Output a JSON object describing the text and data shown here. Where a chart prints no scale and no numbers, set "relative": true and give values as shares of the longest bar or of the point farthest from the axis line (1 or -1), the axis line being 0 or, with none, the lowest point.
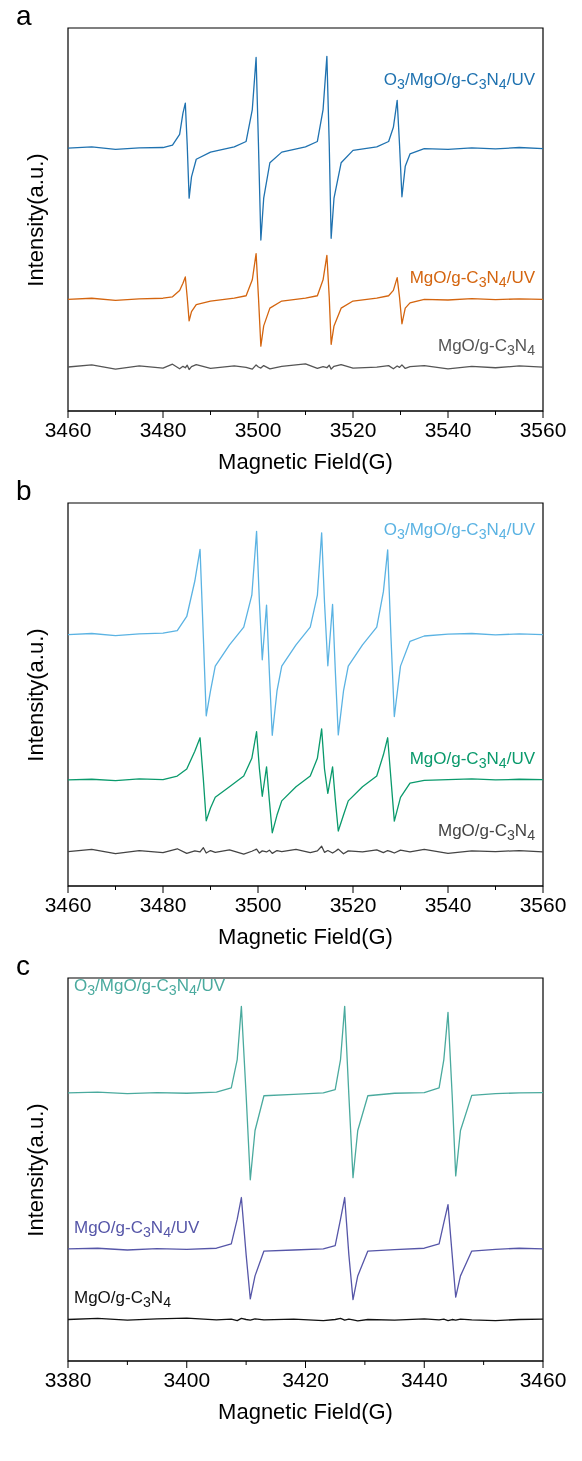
{
  "chart_data": [
    {
      "type": "line",
      "title": "a",
      "xlabel": "Magnetic Field(G)",
      "ylabel": "Intensity(a.u.)",
      "relative": true,
      "grid": false,
      "legend": false,
      "xlim": [
        3460,
        3560
      ],
      "xticks": [
        3460,
        {
          "value": 3470,
          "label": null
        },
        3480,
        {
          "value": 3490,
          "label": null
        },
        3500,
        {
          "value": 3510,
          "label": null
        },
        3520,
        {
          "value": 3530,
          "label": null
        },
        3540,
        {
          "value": 3550,
          "label": null
        },
        3560
      ],
      "series": [
        {
          "name": "O$_{3}$/MgO/g-C$_{3}$N$_{4}$/UV",
          "color": "#1f72b0",
          "x": [
            3460,
            3465,
            3470,
            3475,
            3480,
            3482,
            3483.5,
            3484.2,
            3484.7,
            3485.1,
            3485.5,
            3486,
            3487,
            3490,
            3495,
            3497.5,
            3498.8,
            3499.6,
            3500.1,
            3500.6,
            3501.2,
            3502.5,
            3505,
            3510,
            3512.5,
            3513.7,
            3514.5,
            3515,
            3515.4,
            3516,
            3517.5,
            3520,
            3525,
            3527.5,
            3528.5,
            3529.3,
            3529.8,
            3530.3,
            3531,
            3532,
            3535,
            3540,
            3545,
            3550,
            3555,
            3560
          ],
          "values": [
            0.741,
            0.745,
            0.738,
            0.742,
            0.743,
            0.75,
            0.78,
            0.84,
            0.868,
            0.75,
            0.6,
            0.66,
            0.71,
            0.73,
            0.745,
            0.76,
            0.85,
            0.997,
            0.75,
            0.482,
            0.6,
            0.7,
            0.73,
            0.745,
            0.76,
            0.85,
            1,
            0.75,
            0.487,
            0.6,
            0.7,
            0.735,
            0.745,
            0.76,
            0.8,
            0.876,
            0.75,
            0.604,
            0.69,
            0.725,
            0.74,
            0.738,
            0.742,
            0.739,
            0.743,
            0.74
          ]
        },
        {
          "name": "MgO/g-C$_{3}$N$_{4}$/UV",
          "color": "#d4650f",
          "x": [
            3460,
            3465,
            3470,
            3475,
            3480,
            3482,
            3483.5,
            3484.2,
            3484.7,
            3485.1,
            3485.5,
            3486,
            3487,
            3490,
            3495,
            3497.5,
            3498.8,
            3499.6,
            3500.1,
            3500.6,
            3501.2,
            3502.5,
            3505,
            3510,
            3512.5,
            3513.7,
            3514.5,
            3515,
            3515.4,
            3516,
            3517.5,
            3520,
            3525,
            3527.5,
            3528.5,
            3529.3,
            3529.8,
            3530.3,
            3531,
            3532,
            3535,
            3540,
            3545,
            3550,
            3555,
            3560
          ],
          "values": [
            0.315,
            0.318,
            0.312,
            0.316,
            0.318,
            0.322,
            0.34,
            0.36,
            0.378,
            0.32,
            0.254,
            0.28,
            0.3,
            0.31,
            0.318,
            0.325,
            0.37,
            0.444,
            0.32,
            0.183,
            0.24,
            0.29,
            0.31,
            0.318,
            0.325,
            0.37,
            0.439,
            0.32,
            0.188,
            0.24,
            0.29,
            0.31,
            0.318,
            0.325,
            0.34,
            0.376,
            0.32,
            0.246,
            0.29,
            0.305,
            0.315,
            0.313,
            0.317,
            0.314,
            0.316,
            0.315
          ]
        },
        {
          "name": "MgO/g-C$_{3}$N$_{4}$",
          "color": "#555555",
          "x": [
            3460,
            3465,
            3470,
            3475,
            3480,
            3482,
            3483.5,
            3484.2,
            3484.7,
            3485.1,
            3485.5,
            3486,
            3487,
            3490,
            3495,
            3497.5,
            3498.8,
            3499.6,
            3500.1,
            3500.6,
            3501.2,
            3502.5,
            3505,
            3510,
            3512.5,
            3513.7,
            3514.5,
            3515,
            3515.4,
            3516,
            3517.5,
            3520,
            3525,
            3527.5,
            3528.5,
            3529.3,
            3529.8,
            3530.3,
            3531,
            3532,
            3535,
            3540,
            3545,
            3550,
            3555,
            3560
          ],
          "values": [
            0.124,
            0.13,
            0.118,
            0.127,
            0.121,
            0.132,
            0.119,
            0.126,
            0.122,
            0.129,
            0.117,
            0.125,
            0.131,
            0.12,
            0.127,
            0.123,
            0.118,
            0.13,
            0.124,
            0.121,
            0.128,
            0.119,
            0.126,
            0.133,
            0.12,
            0.125,
            0.122,
            0.129,
            0.118,
            0.126,
            0.131,
            0.121,
            0.124,
            0.128,
            0.119,
            0.127,
            0.123,
            0.13,
            0.12,
            0.125,
            0.128,
            0.119,
            0.126,
            0.122,
            0.127,
            0.124
          ]
        }
      ]
    },
    {
      "type": "line",
      "title": "b",
      "xlabel": "Magnetic Field(G)",
      "ylabel": "Intensity(a.u.)",
      "relative": true,
      "grid": false,
      "legend": false,
      "xlim": [
        3460,
        3560
      ],
      "xticks": [
        3460,
        {
          "value": 3470,
          "label": null
        },
        3480,
        {
          "value": 3490,
          "label": null
        },
        3500,
        {
          "value": 3510,
          "label": null
        },
        3520,
        {
          "value": 3530,
          "label": null
        },
        3540,
        {
          "value": 3550,
          "label": null
        },
        3560
      ],
      "series": [
        {
          "name": "O$_{3}$/MgO/g-C$_{3}$N$_{4}$/UV",
          "color": "#5bb3e3",
          "x": [
            3460,
            3465,
            3470,
            3475,
            3480,
            3483,
            3485,
            3486.7,
            3487.8,
            3488.5,
            3489.1,
            3490,
            3491,
            3494,
            3497,
            3498.7,
            3499.7,
            3500.3,
            3500.9,
            3501.8,
            3502.4,
            3503,
            3504,
            3505,
            3508,
            3511,
            3512.5,
            3513.4,
            3514,
            3514.7,
            3515.7,
            3516.3,
            3516.9,
            3518,
            3519,
            3522,
            3525,
            3526.4,
            3527.3,
            3528,
            3528.7,
            3530,
            3532,
            3535,
            3540,
            3545,
            3550,
            3555,
            3560
          ],
          "values": [
            0.709,
            0.712,
            0.706,
            0.711,
            0.713,
            0.72,
            0.76,
            0.86,
            0.949,
            0.7,
            0.48,
            0.55,
            0.62,
            0.68,
            0.73,
            0.82,
            1,
            0.8,
            0.638,
            0.792,
            0.6,
            0.425,
            0.55,
            0.62,
            0.68,
            0.73,
            0.82,
            0.996,
            0.8,
            0.621,
            0.794,
            0.6,
            0.426,
            0.55,
            0.62,
            0.68,
            0.73,
            0.83,
            0.948,
            0.7,
            0.478,
            0.62,
            0.69,
            0.705,
            0.71,
            0.712,
            0.708,
            0.711,
            0.709
          ]
        },
        {
          "name": "MgO/g-C$_{3}$N$_{4}$/UV",
          "color": "#0a9a6c",
          "x": [
            3460,
            3465,
            3470,
            3475,
            3480,
            3483,
            3485,
            3486.7,
            3487.8,
            3488.5,
            3489.1,
            3490,
            3491,
            3494,
            3497,
            3498.7,
            3499.7,
            3500.3,
            3500.9,
            3501.8,
            3502.4,
            3503,
            3504,
            3505,
            3508,
            3511,
            3512.5,
            3513.4,
            3514,
            3514.7,
            3515.7,
            3516.3,
            3516.9,
            3518,
            3519,
            3522,
            3525,
            3526.4,
            3527.3,
            3528,
            3528.7,
            3530,
            3532,
            3535,
            3540,
            3545,
            3550,
            3555,
            3560
          ],
          "values": [
            0.299,
            0.301,
            0.297,
            0.302,
            0.3,
            0.31,
            0.33,
            0.38,
            0.418,
            0.3,
            0.184,
            0.22,
            0.25,
            0.28,
            0.31,
            0.36,
            0.435,
            0.33,
            0.253,
            0.336,
            0.24,
            0.15,
            0.2,
            0.24,
            0.28,
            0.31,
            0.36,
            0.443,
            0.33,
            0.261,
            0.336,
            0.24,
            0.155,
            0.2,
            0.24,
            0.28,
            0.31,
            0.37,
            0.418,
            0.3,
            0.183,
            0.25,
            0.29,
            0.298,
            0.3,
            0.302,
            0.299,
            0.301,
            0.3
          ]
        },
        {
          "name": "MgO/g-C$_{3}$N$_{4}$",
          "color": "#444444",
          "x": [
            3460,
            3465,
            3470,
            3475,
            3480,
            3483,
            3485,
            3486.7,
            3487.8,
            3488.5,
            3489.1,
            3490,
            3491,
            3494,
            3497,
            3498.7,
            3499.7,
            3500.3,
            3500.9,
            3501.8,
            3502.4,
            3503,
            3504,
            3505,
            3508,
            3511,
            3512.5,
            3513.4,
            3514,
            3514.7,
            3515.7,
            3516.3,
            3516.9,
            3518,
            3519,
            3522,
            3525,
            3526.4,
            3527.3,
            3528,
            3528.7,
            3530,
            3532,
            3535,
            3540,
            3545,
            3550,
            3555,
            3560
          ],
          "values": [
            0.097,
            0.103,
            0.091,
            0.1,
            0.094,
            0.105,
            0.092,
            0.099,
            0.096,
            0.108,
            0.093,
            0.1,
            0.095,
            0.102,
            0.09,
            0.098,
            0.104,
            0.093,
            0.099,
            0.096,
            0.101,
            0.092,
            0.1,
            0.097,
            0.103,
            0.094,
            0.099,
            0.112,
            0.095,
            0.1,
            0.093,
            0.098,
            0.104,
            0.091,
            0.099,
            0.096,
            0.102,
            0.094,
            0.1,
            0.097,
            0.093,
            0.101,
            0.096,
            0.103,
            0.092,
            0.099,
            0.097,
            0.1,
            0.096
          ]
        }
      ]
    },
    {
      "type": "line",
      "title": "c",
      "xlabel": "Magnetic Field(G)",
      "ylabel": "Intensity(a.u.)",
      "relative": true,
      "grid": false,
      "legend": false,
      "xlim": [
        3380,
        3460
      ],
      "xticks": [
        3380,
        {
          "value": 3390,
          "label": null
        },
        3400,
        {
          "value": 3410,
          "label": null
        },
        3420,
        {
          "value": 3430,
          "label": null
        },
        3440,
        {
          "value": 3450,
          "label": null
        },
        3460
      ],
      "series": [
        {
          "name": "O$_{3}$/MgO/g-C$_{3}$N$_{4}$/UV",
          "color": "#4aaa9e",
          "x": [
            3380,
            3385,
            3390,
            3395,
            3400,
            3405,
            3407.5,
            3408.5,
            3409.2,
            3410,
            3410.7,
            3411.5,
            3413,
            3418,
            3423,
            3425,
            3425.9,
            3426.6,
            3427.3,
            3428,
            3428.8,
            3430.5,
            3435,
            3440,
            3442.5,
            3443.3,
            3444,
            3444.7,
            3445.3,
            3446.1,
            3448,
            3452,
            3456,
            3460
          ],
          "values": [
            0.756,
            0.758,
            0.754,
            0.757,
            0.755,
            0.758,
            0.77,
            0.85,
            1,
            0.75,
            0.511,
            0.65,
            0.748,
            0.752,
            0.756,
            0.765,
            0.85,
            1,
            0.75,
            0.517,
            0.65,
            0.748,
            0.755,
            0.757,
            0.77,
            0.85,
            0.983,
            0.75,
            0.522,
            0.65,
            0.749,
            0.754,
            0.756,
            0.757
          ]
        },
        {
          "name": "MgO/g-C$_{3}$N$_{4}$/UV",
          "color": "#5656a8",
          "x": [
            3380,
            3385,
            3390,
            3395,
            3400,
            3405,
            3407.5,
            3408.5,
            3409.2,
            3410,
            3410.7,
            3411.5,
            3413,
            3418,
            3423,
            3425,
            3425.9,
            3426.6,
            3427.3,
            3428,
            3428.8,
            3430.5,
            3435,
            3440,
            3442.5,
            3443.3,
            3444,
            3444.7,
            3445.3,
            3446.1,
            3448,
            3452,
            3456,
            3460
          ],
          "values": [
            0.316,
            0.318,
            0.313,
            0.317,
            0.315,
            0.318,
            0.33,
            0.4,
            0.461,
            0.3,
            0.175,
            0.24,
            0.31,
            0.313,
            0.316,
            0.325,
            0.4,
            0.461,
            0.3,
            0.173,
            0.24,
            0.31,
            0.314,
            0.318,
            0.33,
            0.39,
            0.441,
            0.3,
            0.18,
            0.24,
            0.31,
            0.315,
            0.318,
            0.316
          ]
        },
        {
          "name": "MgO/g-C$_{3}$N$_{4}$",
          "color": "#111111",
          "x": [
            3380,
            3385,
            3390,
            3395,
            3400,
            3405,
            3407.5,
            3408.5,
            3409.2,
            3410,
            3410.7,
            3411.5,
            3413,
            3418,
            3423,
            3425,
            3425.9,
            3426.6,
            3427.3,
            3428,
            3428.8,
            3430.5,
            3435,
            3440,
            3442.5,
            3443.3,
            3444,
            3444.7,
            3445.3,
            3446.1,
            3448,
            3452,
            3456,
            3460
          ],
          "values": [
            0.117,
            0.12,
            0.115,
            0.119,
            0.121,
            0.116,
            0.118,
            0.114,
            0.12,
            0.117,
            0.115,
            0.119,
            0.116,
            0.118,
            0.114,
            0.117,
            0.12,
            0.115,
            0.118,
            0.116,
            0.113,
            0.117,
            0.115,
            0.119,
            0.116,
            0.118,
            0.114,
            0.117,
            0.115,
            0.118,
            0.116,
            0.114,
            0.117,
            0.118
          ]
        }
      ]
    }
  ]
}
